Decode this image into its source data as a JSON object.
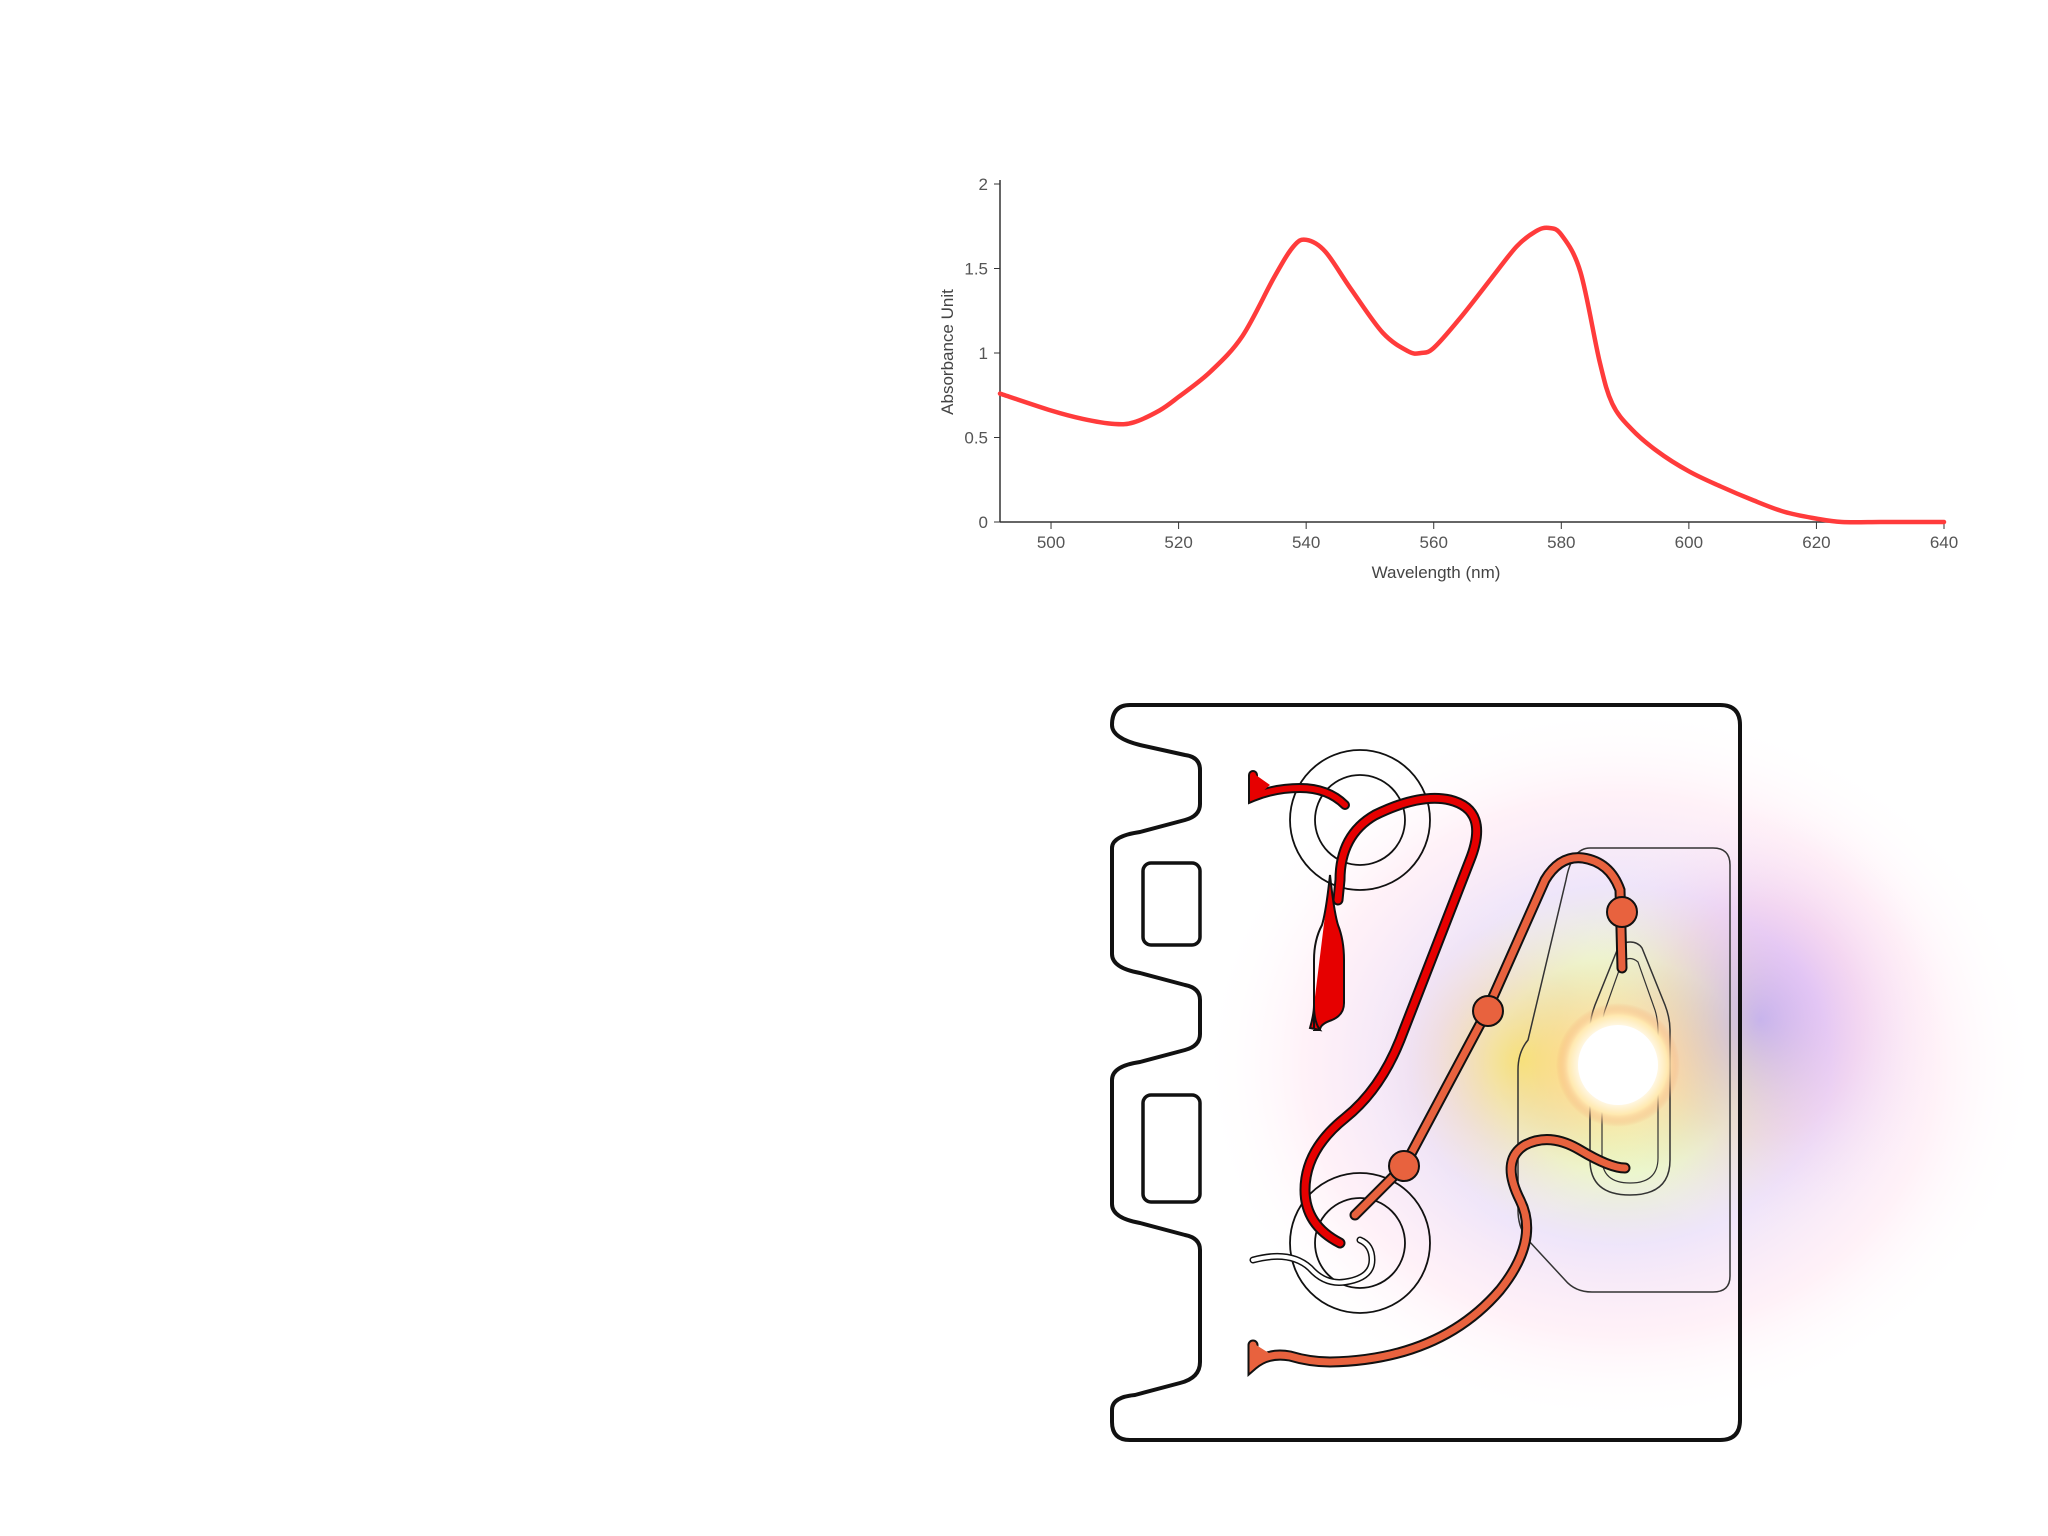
{
  "chart_data": {
    "type": "line",
    "title": "",
    "xlabel": "Wavelength (nm)",
    "ylabel": "Absorbance Unit",
    "xlim": [
      492,
      640
    ],
    "ylim": [
      0,
      2
    ],
    "x_ticks": [
      "500",
      "520",
      "540",
      "560",
      "580",
      "600",
      "620",
      "640"
    ],
    "y_ticks": [
      "0",
      "0.5",
      "1",
      "1.5",
      "2"
    ],
    "grid": false,
    "color": "#ff3b3b",
    "series": [
      {
        "x": [
          492,
          500,
          505,
          510,
          513,
          517,
          520,
          525,
          530,
          535,
          538,
          540,
          543,
          547,
          552,
          556,
          558,
          560,
          564,
          569,
          573,
          576,
          578,
          580,
          583,
          586,
          588,
          591,
          595,
          600,
          605,
          610,
          615,
          620,
          624,
          630,
          635,
          640
        ],
        "y": [
          0.76,
          0.66,
          0.61,
          0.58,
          0.59,
          0.66,
          0.74,
          0.89,
          1.1,
          1.45,
          1.63,
          1.67,
          1.6,
          1.38,
          1.12,
          1.01,
          1.0,
          1.03,
          1.2,
          1.44,
          1.63,
          1.72,
          1.74,
          1.7,
          1.48,
          0.95,
          0.7,
          0.55,
          0.42,
          0.3,
          0.21,
          0.13,
          0.06,
          0.02,
          0.0,
          0.0,
          0.0,
          0.0
        ]
      }
    ]
  },
  "diagram": {
    "colors": {
      "arterial": "#e60000",
      "mixed": "#e8623e",
      "outline": "#111111",
      "light": "#ffffff"
    },
    "icons": [
      "light-source-icon"
    ]
  }
}
